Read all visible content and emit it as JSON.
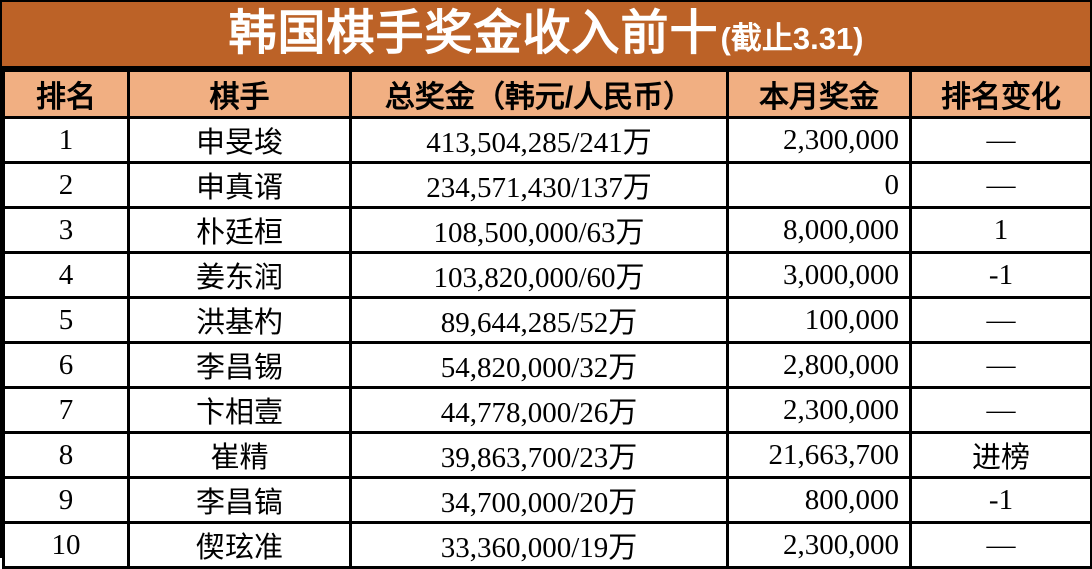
{
  "title": {
    "main": "韩国棋手奖金收入前十",
    "suffix": "(截止3.31)"
  },
  "colors": {
    "title_bg": "#bc6227",
    "header_bg": "#f1af82",
    "title_text": "#ffffff",
    "border": "#000000",
    "cell_text": "#000000"
  },
  "table": {
    "headers": [
      "排名",
      "棋手",
      "总奖金（韩元/人民币）",
      "本月奖金",
      "排名变化"
    ],
    "rows": [
      {
        "rank": "1",
        "player": "申旻埈",
        "total": "413,504,285/241万",
        "month": "2,300,000",
        "change": "—"
      },
      {
        "rank": "2",
        "player": "申真谞",
        "total": "234,571,430/137万",
        "month": "0",
        "change": "—"
      },
      {
        "rank": "3",
        "player": "朴廷桓",
        "total": "108,500,000/63万",
        "month": "8,000,000",
        "change": "1"
      },
      {
        "rank": "4",
        "player": "姜东润",
        "total": "103,820,000/60万",
        "month": "3,000,000",
        "change": "-1"
      },
      {
        "rank": "5",
        "player": "洪基杓",
        "total": "89,644,285/52万",
        "month": "100,000",
        "change": "—"
      },
      {
        "rank": "6",
        "player": "李昌锡",
        "total": "54,820,000/32万",
        "month": "2,800,000",
        "change": "—"
      },
      {
        "rank": "7",
        "player": "卞相壹",
        "total": "44,778,000/26万",
        "month": "2,300,000",
        "change": "—"
      },
      {
        "rank": "8",
        "player": "崔精",
        "total": "39,863,700/23万",
        "month": "21,663,700",
        "change": "进榜"
      },
      {
        "rank": "9",
        "player": "李昌镐",
        "total": "34,700,000/20万",
        "month": "800,000",
        "change": "-1"
      },
      {
        "rank": "10",
        "player": "偰玹准",
        "total": "33,360,000/19万",
        "month": "2,300,000",
        "change": "—"
      }
    ]
  },
  "chart_data": {
    "type": "table",
    "title": "韩国棋手奖金收入前十(截止3.31)",
    "columns": [
      "排名",
      "棋手",
      "总奖金（韩元/人民币）",
      "本月奖金",
      "排名变化"
    ],
    "rows": [
      [
        "1",
        "申旻埈",
        "413,504,285/241万",
        "2,300,000",
        "—"
      ],
      [
        "2",
        "申真谞",
        "234,571,430/137万",
        "0",
        "—"
      ],
      [
        "3",
        "朴廷桓",
        "108,500,000/63万",
        "8,000,000",
        "1"
      ],
      [
        "4",
        "姜东润",
        "103,820,000/60万",
        "3,000,000",
        "-1"
      ],
      [
        "5",
        "洪基杓",
        "89,644,285/52万",
        "100,000",
        "—"
      ],
      [
        "6",
        "李昌锡",
        "54,820,000/32万",
        "2,800,000",
        "—"
      ],
      [
        "7",
        "卞相壹",
        "44,778,000/26万",
        "2,300,000",
        "—"
      ],
      [
        "8",
        "崔精",
        "39,863,700/23万",
        "21,663,700",
        "进榜"
      ],
      [
        "9",
        "李昌镐",
        "34,700,000/20万",
        "800,000",
        "-1"
      ],
      [
        "10",
        "偰玹准",
        "33,360,000/19万",
        "2,300,000",
        "—"
      ]
    ]
  }
}
